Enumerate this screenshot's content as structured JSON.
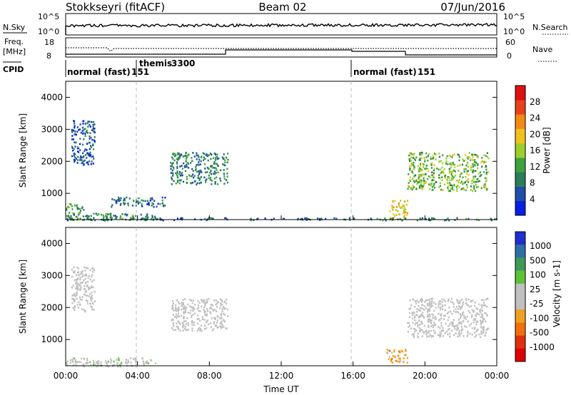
{
  "header": {
    "station": "Stokkseyri (fitACF)",
    "beam": "Beam 02",
    "date": "07/Jun/2016"
  },
  "strip": {
    "nsky_label": "N.Sky",
    "nsearch_label": "N.Search",
    "log_ticks_left": [
      "10^5",
      "10^0"
    ],
    "log_ticks_right": [
      "10^5",
      "10^0"
    ],
    "freq_label": "Freq.",
    "freq_unit": "[MHz]",
    "freq_ticks": [
      "18",
      "8"
    ],
    "nave_label": "Nave",
    "nave_ticks": [
      "60",
      "0"
    ],
    "cpid_label": "CPID",
    "cpid_segments": [
      {
        "label": "normal (fast)",
        "code": "151",
        "start_h": 0,
        "end_h": 4
      },
      {
        "label": "themis",
        "code": "3300",
        "start_h": 4,
        "end_h": 16
      },
      {
        "label": "normal (fast)",
        "code": "151",
        "start_h": 16,
        "end_h": 24
      }
    ]
  },
  "colors": {
    "power_scale": [
      "#0a1fe6",
      "#1f4fa8",
      "#2c7d5a",
      "#3fa23a",
      "#9ccf2a",
      "#f2c21c",
      "#f28a14",
      "#e8421a",
      "#e01010"
    ],
    "velocity_scale": [
      "#1f2fd0",
      "#2e6fa5",
      "#3f9a5a",
      "#5ec238",
      "#c0c0c0",
      "#c0c0c0",
      "#f0a020",
      "#f07010",
      "#e03010",
      "#e00000"
    ]
  },
  "chart_data": [
    {
      "type": "heatmap",
      "panel": "power",
      "xlabel": "",
      "ylabel": "Slant Range [km]",
      "xlim": [
        0,
        24
      ],
      "ylim": [
        180,
        4500
      ],
      "yticks": [
        "1000",
        "2000",
        "3000",
        "4000"
      ],
      "colorbar_label": "Power [dB]",
      "colorbar_ticks": [
        "4",
        "8",
        "12",
        "16",
        "20",
        "24",
        "28"
      ],
      "colorbar_range": [
        0,
        32
      ],
      "regions": [
        {
          "t0": 0.0,
          "t1": 5.0,
          "r0": 180,
          "r1": 400,
          "value": 10
        },
        {
          "t0": 0.0,
          "t1": 1.0,
          "r0": 400,
          "r1": 700,
          "value": 12
        },
        {
          "t0": 2.5,
          "t1": 5.5,
          "r0": 600,
          "r1": 900,
          "value": 8
        },
        {
          "t0": 0.3,
          "t1": 1.6,
          "r0": 1900,
          "r1": 3300,
          "value": 6
        },
        {
          "t0": 5.8,
          "t1": 9.0,
          "r0": 1300,
          "r1": 2300,
          "value": 9
        },
        {
          "t0": 18.0,
          "t1": 19.0,
          "r0": 250,
          "r1": 800,
          "value": 20
        },
        {
          "t0": 19.0,
          "t1": 23.5,
          "r0": 1100,
          "r1": 2300,
          "value": 14
        },
        {
          "t0": 0.0,
          "t1": 24.0,
          "r0": 180,
          "r1": 260,
          "value": 8
        }
      ]
    },
    {
      "type": "heatmap",
      "panel": "velocity",
      "xlabel": "Time UT",
      "ylabel": "Slant Range [km]",
      "xlim": [
        0,
        24
      ],
      "ylim": [
        180,
        4500
      ],
      "xticks": [
        "00:00",
        "04:00",
        "08:00",
        "12:00",
        "16:00",
        "20:00",
        "00:00"
      ],
      "yticks": [
        "1000",
        "2000",
        "3000",
        "4000"
      ],
      "colorbar_label": "Velocity [m s-1]",
      "colorbar_ticks": [
        "1000",
        "500",
        "100",
        "25",
        "-25",
        "-100",
        "-500",
        "-1000"
      ],
      "colorbar_range": [
        -1000,
        1000
      ],
      "regions": [
        {
          "t0": 0.0,
          "t1": 5.0,
          "r0": 180,
          "r1": 450,
          "value": 80
        },
        {
          "t0": 0.3,
          "t1": 1.6,
          "r0": 1900,
          "r1": 3300,
          "value": 0
        },
        {
          "t0": 5.8,
          "t1": 9.0,
          "r0": 1300,
          "r1": 2300,
          "value": 0
        },
        {
          "t0": 17.8,
          "t1": 19.0,
          "r0": 300,
          "r1": 750,
          "value": -300
        },
        {
          "t0": 19.0,
          "t1": 23.5,
          "r0": 1100,
          "r1": 2300,
          "value": 0
        }
      ]
    }
  ]
}
